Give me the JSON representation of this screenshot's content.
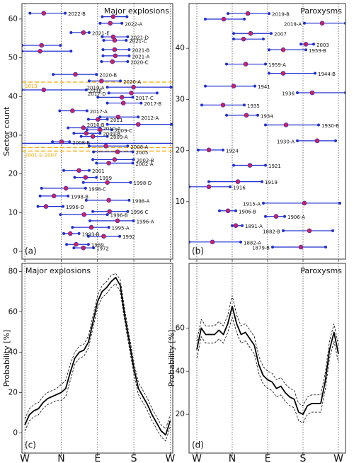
{
  "chart_data": [
    {
      "type": "range",
      "title": "Major explosions",
      "panel_label": "(a)",
      "y_label": "Sector count",
      "xlim": [
        -0.08,
        4.07
      ],
      "xticks": [
        0,
        1,
        2,
        3,
        4
      ],
      "ylim": [
        -2,
        64
      ],
      "yticks": [
        0,
        10,
        20,
        30,
        40,
        50,
        60
      ],
      "range_color": "#1f2fd0",
      "center_color": "#d0205a",
      "reference_lines": [
        {
          "y": 43.7,
          "color": "#f5a800",
          "style": "dashed",
          "label": "2019"
        },
        {
          "y": 27.9,
          "color": "#1f2fd0",
          "style": "solid"
        },
        {
          "y": 26.8,
          "color": "#f5a800",
          "style": "dashed"
        },
        {
          "y": 25.9,
          "color": "#f5a800",
          "style": "dashed",
          "label": "2001 & 2007"
        }
      ],
      "ranges": [
        {
          "label": "2022-B",
          "y": 61.5,
          "start": 0.14,
          "center": 0.52,
          "end": 1.11
        },
        {
          "label": null,
          "y": 60.6,
          "start": 2.13,
          "center": 2.43,
          "end": 2.81
        },
        {
          "label": "2022-A",
          "y": 58.9,
          "start": 2.07,
          "center": 2.35,
          "end": 2.67
        },
        {
          "label": "2021-E",
          "y": 56.5,
          "start": 1.27,
          "center": 1.61,
          "end": 1.77
        },
        {
          "label": "2021-D",
          "y": 55.4,
          "start": 2.13,
          "center": 2.43,
          "end": 2.83
        },
        {
          "label": "2021-C",
          "y": 54.5,
          "start": 2.17,
          "center": 2.47,
          "end": 2.79
        },
        {
          "label": null,
          "y": 53.2,
          "start": -0.08,
          "center": 0.46,
          "end": 0.98
        },
        {
          "label": "2021-B",
          "y": 52.1,
          "start": 2.15,
          "center": 2.47,
          "end": 2.87
        },
        {
          "label": null,
          "y": 51.7,
          "start": -0.08,
          "center": 0.42,
          "end": 1.27
        },
        {
          "label": "2021-A",
          "y": 50.5,
          "start": 2.15,
          "center": 2.49,
          "end": 2.87
        },
        {
          "label": "2020-C",
          "y": 49,
          "start": 2.11,
          "center": 2.41,
          "end": 2.83
        },
        {
          "label": "2020-B",
          "y": 45.7,
          "start": 0.78,
          "center": 1.39,
          "end": 1.97
        },
        {
          "label": "2020-A",
          "y": 44,
          "start": 1.77,
          "center": 2.11,
          "end": 2.63
        },
        {
          "label": "2019-A",
          "y": 42.4,
          "start": 2.27,
          "center": 2.99,
          "end": 4.02
        },
        {
          "label": "2018",
          "y": 41.7,
          "start": -0.08,
          "center": 0.52,
          "end": 1.69
        },
        {
          "label": "2017-D",
          "y": 40.9,
          "start": 2.31,
          "center": 2.93,
          "end": 3.64
        },
        {
          "label": "2017-C",
          "y": 39.8,
          "start": 2.01,
          "center": 2.67,
          "end": 2.97
        },
        {
          "label": "2017-B",
          "y": 38.3,
          "start": 2.27,
          "center": 2.71,
          "end": 3.2
        },
        {
          "label": "2017-A",
          "y": 36.3,
          "start": 0.96,
          "center": 1.31,
          "end": 1.71
        },
        {
          "label": "2012-A",
          "y": 34.7,
          "start": 2.07,
          "center": 2.57,
          "end": 3.12
        },
        {
          "label": "2011",
          "y": 34.1,
          "start": 1.75,
          "center": 2.01,
          "end": 2.27
        },
        {
          "label": "2010-B",
          "y": 32.8,
          "start": 2.27,
          "center": 3.12,
          "end": 4.04
        },
        {
          "label": "2010-A",
          "y": 31.9,
          "start": 1.19,
          "center": 1.61,
          "end": 2.07
        },
        {
          "label": "2009-C",
          "y": 31.4,
          "start": 1.71,
          "center": 2.07,
          "end": 2.39
        },
        {
          "label": "2009-B",
          "y": 30.5,
          "start": 1.35,
          "center": 1.69,
          "end": 2.07
        },
        {
          "label": "2009-A",
          "y": 29.7,
          "start": 1.55,
          "center": 1.87,
          "end": 2.27
        },
        {
          "label": "2008-B",
          "y": 28.3,
          "start": 0.76,
          "center": 1.01,
          "end": 1.23
        },
        {
          "label": "2008-A",
          "y": 27.2,
          "start": 1.77,
          "center": 2.23,
          "end": 2.83
        },
        {
          "label": "2005",
          "y": 25.7,
          "start": 1.89,
          "center": 2.55,
          "end": 2.97
        },
        {
          "label": "2002-B",
          "y": 23.7,
          "start": 1.87,
          "center": 2.47,
          "end": 2.99
        },
        {
          "label": "2002-A",
          "y": 22.8,
          "start": 1.97,
          "center": 2.31,
          "end": 2.97
        },
        {
          "label": "2001",
          "y": 20.9,
          "start": 1.07,
          "center": 1.49,
          "end": 1.77
        },
        {
          "label": "1999",
          "y": 19.1,
          "start": 1.37,
          "center": 1.67,
          "end": 1.97
        },
        {
          "label": "1998-D",
          "y": 17.8,
          "start": 1.61,
          "center": 2.27,
          "end": 2.91
        },
        {
          "label": "1998-C",
          "y": 16.3,
          "start": 0.46,
          "center": 1.13,
          "end": 1.67
        },
        {
          "label": "1998-B",
          "y": 14.3,
          "start": 0.42,
          "center": 0.8,
          "end": 1.19
        },
        {
          "label": "1998-A",
          "y": 13.2,
          "start": 1.69,
          "center": 2.31,
          "end": 2.87
        },
        {
          "label": "1996-D",
          "y": 11.6,
          "start": 0.36,
          "center": 0.58,
          "end": 1.05
        },
        {
          "label": "1996-C",
          "y": 10.3,
          "start": 1.87,
          "center": 2.33,
          "end": 2.83
        },
        {
          "label": "1996-B",
          "y": 9.5,
          "start": 0.98,
          "center": 1.63,
          "end": 2.27
        },
        {
          "label": "1996-A",
          "y": 7.9,
          "start": 1.79,
          "center": 2.55,
          "end": 2.99
        },
        {
          "label": "1995-A",
          "y": 6.2,
          "start": 1.31,
          "center": 1.83,
          "end": 2.31
        },
        {
          "label": "1993-B",
          "y": 4.6,
          "start": 1.07,
          "center": 1.25,
          "end": 1.49
        },
        {
          "label": "1992",
          "y": 3.9,
          "start": 1.75,
          "center": 2.17,
          "end": 2.61
        },
        {
          "label": "1989",
          "y": 1.8,
          "start": 1.15,
          "center": 1.41,
          "end": 1.75
        },
        {
          "label": "1972",
          "y": 0.9,
          "start": 1.35,
          "center": 1.61,
          "end": 1.89
        }
      ]
    },
    {
      "type": "range",
      "title": "Paroxysms",
      "panel_label": "(b)",
      "xlim": [
        -0.22,
        4.2
      ],
      "xticks": [
        0,
        1,
        2,
        3,
        4
      ],
      "ylim": [
        -1.25,
        48.75
      ],
      "yticks": [
        10,
        20,
        30,
        40
      ],
      "range_color": "#1f2fd0",
      "center_color": "#d0205a",
      "ranges": [
        {
          "label": "2019-B",
          "y": 46.8,
          "start": 0.88,
          "center": 1.44,
          "end": 2.04
        },
        {
          "label": null,
          "y": 45.7,
          "start": 0.24,
          "center": 0.76,
          "end": 1.34
        },
        {
          "label": "2019-A",
          "y": 44.9,
          "start": 3.04,
          "center": 3.54,
          "end": 4.2
        },
        {
          "label": "2007",
          "y": 42.9,
          "start": 1.04,
          "center": 1.52,
          "end": 2.1
        },
        {
          "label": null,
          "y": 41.8,
          "start": 1.04,
          "center": 1.32,
          "end": 1.88
        },
        {
          "label": "2003",
          "y": 40.8,
          "start": 2.94,
          "center": 3.08,
          "end": 3.3
        },
        {
          "label": "1959-B",
          "y": 39.7,
          "start": 2.04,
          "center": 2.44,
          "end": 3.08
        },
        {
          "label": "1959-A",
          "y": 36.9,
          "start": 0.84,
          "center": 1.38,
          "end": 1.94
        },
        {
          "label": "1944-B",
          "y": 35.1,
          "start": 2.04,
          "center": 2.44,
          "end": 3.34
        },
        {
          "label": "1941",
          "y": 32.6,
          "start": 0.24,
          "center": 1.04,
          "end": 1.64
        },
        {
          "label": "1936",
          "y": 31.3,
          "start": 2.84,
          "center": 3.26,
          "end": 4.2
        },
        {
          "label": "1935",
          "y": 28.9,
          "start": 0.14,
          "center": 0.74,
          "end": 1.34
        },
        {
          "label": "1934",
          "y": 26.9,
          "start": 0.84,
          "center": 1.4,
          "end": 1.72
        },
        {
          "label": "1930-B",
          "y": 25,
          "start": 1.94,
          "center": 2.52,
          "end": 3.44
        },
        {
          "label": "1930-A",
          "y": 21.9,
          "start": 2.84,
          "center": 3.4,
          "end": 3.92
        },
        {
          "label": "1924",
          "y": 20.1,
          "start": 0.04,
          "center": 0.34,
          "end": 0.74
        },
        {
          "label": "1921",
          "y": 17.1,
          "start": 1.04,
          "center": 1.5,
          "end": 1.94
        },
        {
          "label": "1919",
          "y": 13.9,
          "start": 0.34,
          "center": 1.16,
          "end": 1.84
        },
        {
          "label": "1916",
          "y": 12.9,
          "start": -0.22,
          "center": 0.34,
          "end": 0.94
        },
        {
          "label": "1915-A",
          "y": 9.7,
          "start": 1.88,
          "center": 3.04,
          "end": 4.04
        },
        {
          "label": "1906-B",
          "y": 8.2,
          "start": 0.64,
          "center": 0.88,
          "end": 1.1
        },
        {
          "label": "1906-A",
          "y": 7.1,
          "start": 1.94,
          "center": 2.24,
          "end": 2.48
        },
        {
          "label": "1891-A",
          "y": 5.3,
          "start": 1.0,
          "center": 1.1,
          "end": 1.28
        },
        {
          "label": "1882-B",
          "y": 4.3,
          "start": 2.44,
          "center": 3.18,
          "end": 3.84
        },
        {
          "label": "1882-A",
          "y": 2.1,
          "start": -0.22,
          "center": 0.44,
          "end": 1.24
        },
        {
          "label": "1879-B",
          "y": 1.1,
          "start": 2.14,
          "center": 2.94,
          "end": 3.64
        }
      ]
    },
    {
      "type": "line",
      "title": "Major explosions",
      "panel_label": "(c)",
      "y_label": "Probability [%]",
      "xlim": [
        -0.08,
        4.07
      ],
      "xticks": [
        {
          "value": 0,
          "label": "W"
        },
        {
          "value": 1,
          "label": "N"
        },
        {
          "value": 2,
          "label": "E"
        },
        {
          "value": 3,
          "label": "S"
        },
        {
          "value": 4,
          "label": "W"
        }
      ],
      "ylim": [
        -10,
        84
      ],
      "yticks": [
        0,
        20,
        40,
        60,
        80
      ],
      "x": [
        0,
        0.125,
        0.25,
        0.375,
        0.5,
        0.625,
        0.75,
        0.875,
        1,
        1.125,
        1.25,
        1.375,
        1.5,
        1.625,
        1.75,
        1.875,
        2,
        2.125,
        2.25,
        2.375,
        2.5,
        2.625,
        2.75,
        2.875,
        3,
        3.125,
        3.25,
        3.375,
        3.5,
        3.625,
        3.75,
        3.875,
        4
      ],
      "series": [
        {
          "color": "#000000",
          "style": "solid",
          "values": [
            4,
            9,
            11,
            12,
            15,
            17,
            18,
            19,
            20,
            22,
            30,
            37,
            40,
            41,
            45,
            55,
            65,
            70,
            72,
            75,
            77,
            73,
            58,
            45,
            32,
            22,
            18,
            14,
            9,
            5,
            1,
            -1,
            6
          ]
        },
        {
          "color": "#000000",
          "style": "dashed",
          "values": [
            7,
            12,
            14,
            15,
            18,
            20,
            21,
            22,
            24,
            26,
            34,
            40,
            43,
            44,
            48,
            58,
            68,
            73,
            75,
            78,
            79,
            76,
            61,
            48,
            35,
            25,
            21,
            17,
            12,
            8,
            4,
            2,
            9
          ]
        },
        {
          "color": "#000000",
          "style": "dashed",
          "values": [
            1,
            6,
            8,
            9,
            12,
            14,
            15,
            16,
            16,
            18,
            26,
            34,
            37,
            38,
            42,
            52,
            62,
            67,
            69,
            72,
            74,
            70,
            55,
            42,
            29,
            19,
            15,
            11,
            6,
            2,
            -2,
            -4,
            3
          ]
        }
      ]
    },
    {
      "type": "line",
      "title": "Paroxysms",
      "panel_label": "(d)",
      "y_label": "Probability [%]",
      "xlim": [
        -0.22,
        4.2
      ],
      "xticks": [
        {
          "value": 0,
          "label": "W"
        },
        {
          "value": 1,
          "label": "N"
        },
        {
          "value": 2,
          "label": "E"
        },
        {
          "value": 3,
          "label": "S"
        },
        {
          "value": 4,
          "label": "W"
        }
      ],
      "ylim": [
        2,
        90
      ],
      "yticks": [
        20,
        40,
        60
      ],
      "x": [
        0,
        0.125,
        0.25,
        0.375,
        0.5,
        0.625,
        0.75,
        0.875,
        1,
        1.125,
        1.25,
        1.375,
        1.5,
        1.625,
        1.75,
        1.875,
        2,
        2.125,
        2.25,
        2.375,
        2.5,
        2.625,
        2.75,
        2.875,
        3,
        3.125,
        3.25,
        3.375,
        3.5,
        3.625,
        3.75,
        3.875,
        4
      ],
      "series": [
        {
          "color": "#000000",
          "style": "solid",
          "values": [
            50,
            60,
            57,
            57,
            57,
            59,
            57,
            62,
            70,
            62,
            57,
            58,
            55,
            52,
            43,
            38,
            36,
            35,
            32,
            33,
            30,
            28,
            27,
            21,
            20,
            24,
            25,
            25,
            25,
            35,
            50,
            58,
            48
          ]
        },
        {
          "color": "#000000",
          "style": "dashed",
          "values": [
            54,
            64,
            61,
            61,
            61,
            63,
            61,
            66,
            75,
            66,
            61,
            62,
            59,
            56,
            47,
            42,
            40,
            39,
            36,
            37,
            34,
            32,
            31,
            25,
            24,
            28,
            29,
            29,
            29,
            39,
            54,
            62,
            52
          ]
        },
        {
          "color": "#000000",
          "style": "dashed",
          "values": [
            46,
            56,
            53,
            53,
            53,
            55,
            53,
            58,
            65,
            58,
            53,
            54,
            51,
            48,
            39,
            34,
            32,
            31,
            28,
            29,
            26,
            24,
            23,
            17,
            16,
            20,
            21,
            21,
            21,
            31,
            46,
            54,
            44
          ]
        }
      ]
    }
  ]
}
